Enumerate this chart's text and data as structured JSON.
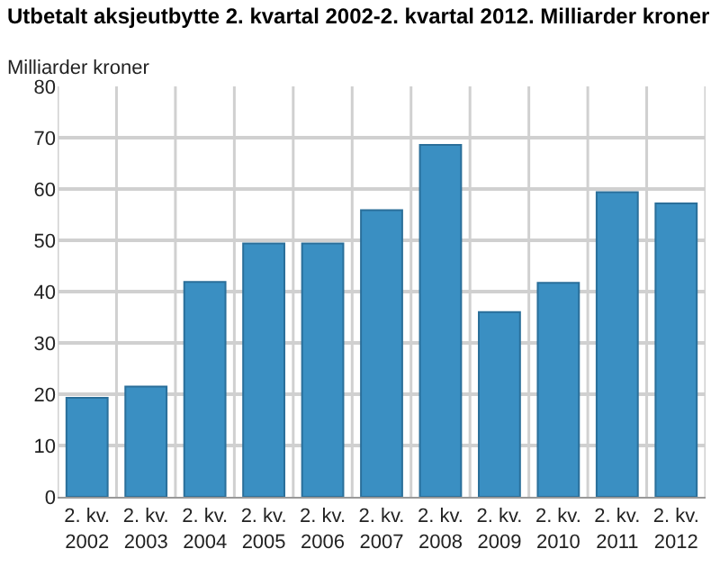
{
  "chart_data": {
    "type": "bar",
    "title": "Utbetalt aksjeutbytte 2. kvartal 2002-2. kvartal 2012. Milliarder kroner",
    "ylabel": "Milliarder kroner",
    "categories": [
      "2. kv. 2002",
      "2. kv. 2003",
      "2. kv. 2004",
      "2. kv. 2005",
      "2. kv. 2006",
      "2. kv. 2007",
      "2. kv. 2008",
      "2. kv. 2009",
      "2. kv. 2010",
      "2. kv. 2011",
      "2. kv. 2012"
    ],
    "values": [
      19.3,
      21.5,
      41.9,
      49.4,
      49.4,
      55.9,
      68.6,
      36.0,
      41.7,
      59.4,
      57.2
    ],
    "color": "#3a8fc2",
    "ylim": [
      0,
      80
    ],
    "yticks": [
      0,
      10,
      20,
      30,
      40,
      50,
      60,
      70,
      80
    ],
    "grid": true
  }
}
